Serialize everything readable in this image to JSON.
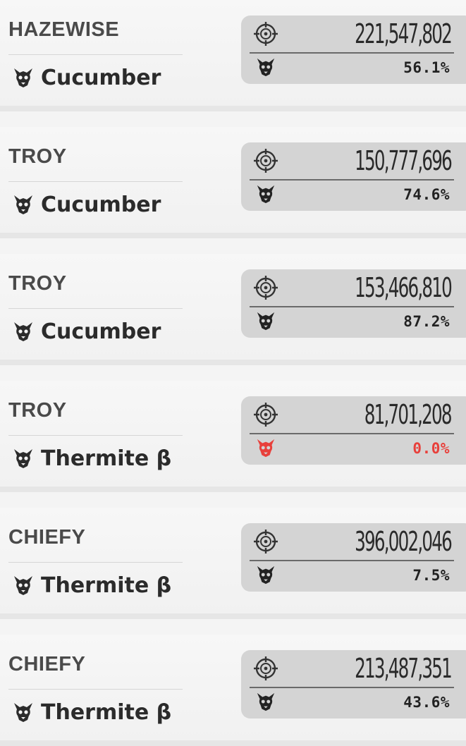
{
  "colors": {
    "zero_pct": "#e8403b",
    "card_bg": "#f4f4f4",
    "stat_box": "#d4d4d4"
  },
  "icons": {
    "map": "skull-horns-icon",
    "score": "crosshair-target-icon",
    "rate": "skull-horns-icon"
  },
  "rows": [
    {
      "player": "HAZEWISE",
      "map": "Cucumber",
      "score": "221,547,802",
      "percent": "56.1%",
      "zero": false
    },
    {
      "player": "TROY",
      "map": "Cucumber",
      "score": "150,777,696",
      "percent": "74.6%",
      "zero": false
    },
    {
      "player": "TROY",
      "map": "Cucumber",
      "score": "153,466,810",
      "percent": "87.2%",
      "zero": false
    },
    {
      "player": "TROY",
      "map": "Thermite β",
      "score": "81,701,208",
      "percent": "0.0%",
      "zero": true
    },
    {
      "player": "CHIEFY",
      "map": "Thermite β",
      "score": "396,002,046",
      "percent": "7.5%",
      "zero": false
    },
    {
      "player": "CHIEFY",
      "map": "Thermite β",
      "score": "213,487,351",
      "percent": "43.6%",
      "zero": false
    }
  ]
}
